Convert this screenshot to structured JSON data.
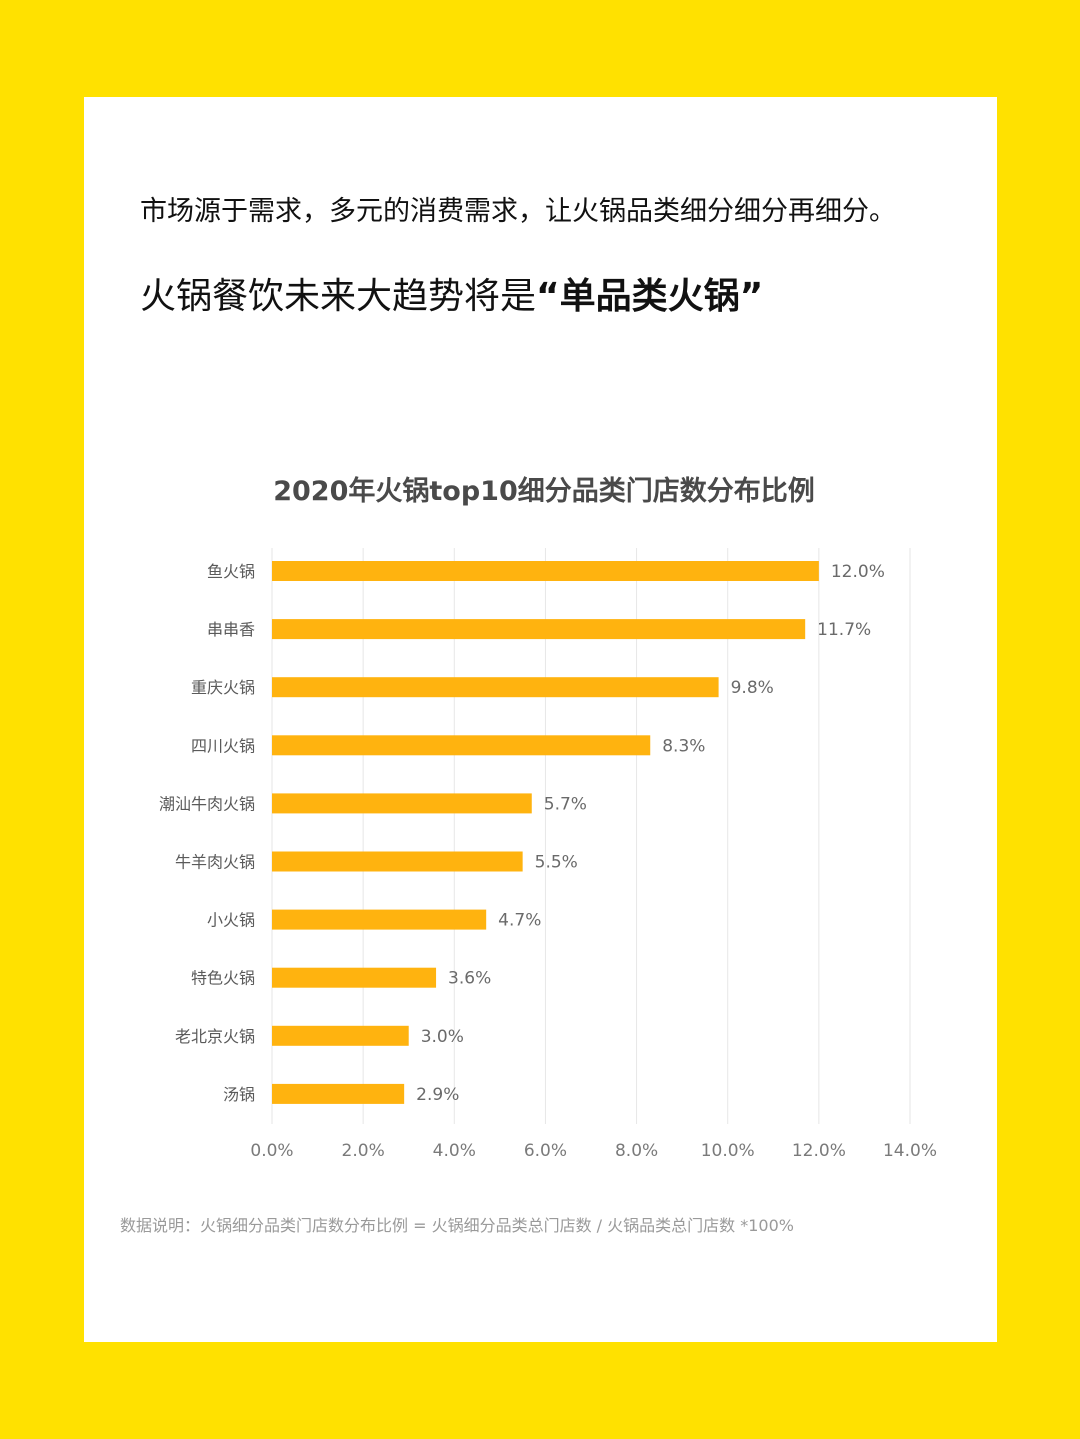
{
  "intro_text": "市场源于需求，多元的消费需求，让火锅品类细分细分再细分。",
  "headline": {
    "prefix": "火锅餐饮未来大趋势将是",
    "emphasis": "“单品类火锅”"
  },
  "colors": {
    "background": "#FFE100",
    "card": "#FFFFFF",
    "bar": "#FFB30F"
  },
  "chart_data": {
    "type": "bar",
    "orientation": "horizontal",
    "title": "2020年火锅top10细分品类门店数分布比例",
    "categories": [
      "鱼火锅",
      "串串香",
      "重庆火锅",
      "四川火锅",
      "潮汕牛肉火锅",
      "牛羊肉火锅",
      "小火锅",
      "特色火锅",
      "老北京火锅",
      "汤锅"
    ],
    "values": [
      12.0,
      11.7,
      9.8,
      8.3,
      5.7,
      5.5,
      4.7,
      3.6,
      3.0,
      2.9
    ],
    "value_labels": [
      "12.0%",
      "11.7%",
      "9.8%",
      "8.3%",
      "5.7%",
      "5.5%",
      "4.7%",
      "3.6%",
      "3.0%",
      "2.9%"
    ],
    "xlim": [
      0,
      14
    ],
    "x_ticks": [
      0,
      2,
      4,
      6,
      8,
      10,
      12,
      14
    ],
    "x_tick_labels": [
      "0.0%",
      "2.0%",
      "4.0%",
      "6.0%",
      "8.0%",
      "10.0%",
      "12.0%",
      "14.0%"
    ],
    "grid": true,
    "xlabel": "",
    "ylabel": "",
    "footnote": "数据说明：火锅细分品类门店数分布比例 = 火锅细分品类总门店数 / 火锅品类总门店数 *100%"
  }
}
